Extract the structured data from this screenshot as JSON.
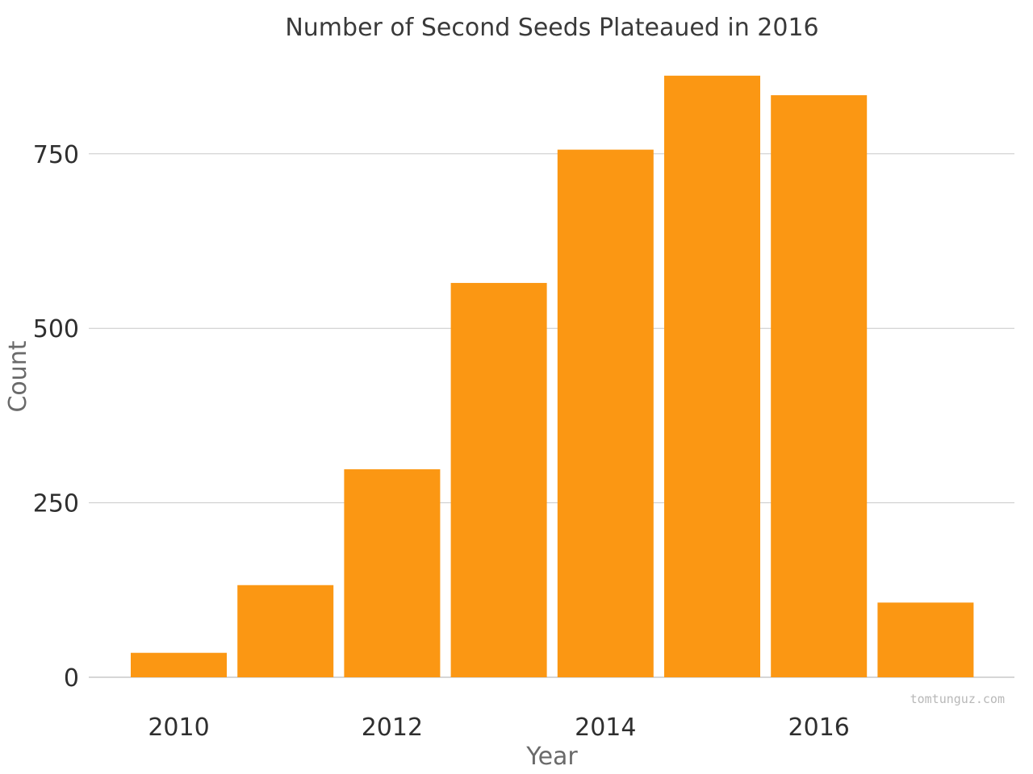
{
  "chart_data": {
    "type": "bar",
    "title": "Number of Second Seeds Plateaued in 2016",
    "xlabel": "Year",
    "ylabel": "Count",
    "categories": [
      2010,
      2011,
      2012,
      2013,
      2014,
      2015,
      2016,
      2017
    ],
    "values": [
      35,
      132,
      298,
      565,
      756,
      862,
      834,
      107
    ],
    "x_ticks": [
      "2010",
      "2012",
      "2014",
      "2016"
    ],
    "y_ticks": [
      "0",
      "250",
      "500",
      "750"
    ],
    "y_tick_values": [
      0,
      250,
      500,
      750
    ],
    "ylim": [
      0,
      880
    ],
    "grid": "horizontal",
    "bar_color": "#fb9713",
    "watermark": "tomtunguz.com"
  }
}
